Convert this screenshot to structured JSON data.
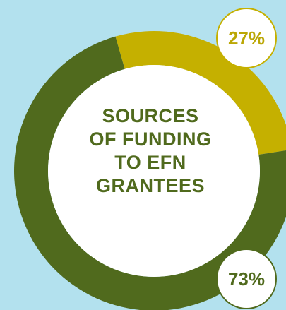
{
  "chart_data": {
    "type": "pie",
    "variant": "donut",
    "title_lines": [
      "SOURCES",
      "OF FUNDING",
      "TO EFN",
      "GRANTEES"
    ],
    "slices": [
      {
        "value": 27,
        "label": "27%",
        "color": "#c5b000"
      },
      {
        "value": 73,
        "label": "73%",
        "color": "#506a1d"
      }
    ],
    "background_color": "#b3e1ee",
    "center_color": "#ffffff"
  }
}
